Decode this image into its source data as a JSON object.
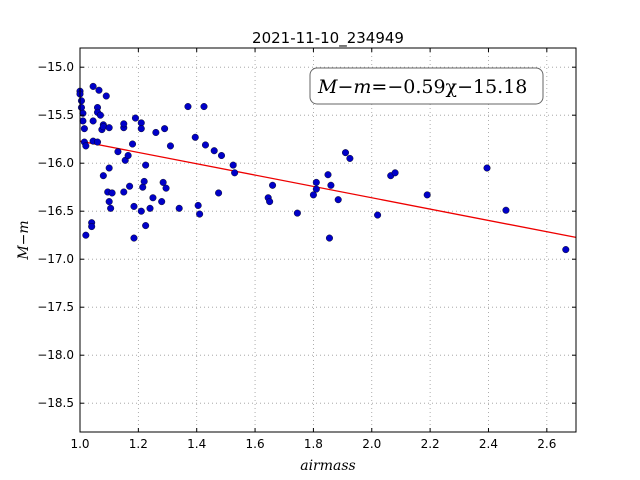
{
  "chart_data": {
    "type": "scatter",
    "title": "2021-11-10_234949",
    "xlabel": "airmass",
    "ylabel": "M−m",
    "xlim": [
      1.0,
      2.7
    ],
    "ylim": [
      -18.8,
      -14.8
    ],
    "x_ticks": [
      "1.0",
      "1.2",
      "1.4",
      "1.6",
      "1.8",
      "2.0",
      "2.2",
      "2.4",
      "2.6"
    ],
    "y_ticks": [
      "−15.0",
      "−15.5",
      "−16.0",
      "−16.5",
      "−17.0",
      "−17.5",
      "−18.0",
      "−18.5"
    ],
    "grid": true,
    "annotation": {
      "text_lhs": "M−m",
      "text_rhs": "=−0.59χ−15.18",
      "position": "top-right"
    },
    "fit": {
      "slope": -0.59,
      "intercept": -15.18,
      "color": "#ee0000"
    },
    "marker_color": "#0000c8",
    "points": [
      [
        1.0,
        -15.25
      ],
      [
        1.0,
        -15.28
      ],
      [
        1.005,
        -15.35
      ],
      [
        1.005,
        -15.42
      ],
      [
        1.01,
        -15.48
      ],
      [
        1.01,
        -15.56
      ],
      [
        1.015,
        -15.64
      ],
      [
        1.015,
        -15.78
      ],
      [
        1.02,
        -15.82
      ],
      [
        1.02,
        -16.75
      ],
      [
        1.04,
        -16.62
      ],
      [
        1.04,
        -16.66
      ],
      [
        1.045,
        -15.2
      ],
      [
        1.045,
        -15.56
      ],
      [
        1.045,
        -15.77
      ],
      [
        1.06,
        -15.42
      ],
      [
        1.06,
        -15.47
      ],
      [
        1.06,
        -15.78
      ],
      [
        1.065,
        -15.24
      ],
      [
        1.07,
        -15.5
      ],
      [
        1.075,
        -15.65
      ],
      [
        1.08,
        -15.6
      ],
      [
        1.08,
        -15.62
      ],
      [
        1.08,
        -16.13
      ],
      [
        1.09,
        -15.3
      ],
      [
        1.095,
        -16.3
      ],
      [
        1.1,
        -16.05
      ],
      [
        1.1,
        -15.63
      ],
      [
        1.1,
        -16.4
      ],
      [
        1.105,
        -16.47
      ],
      [
        1.11,
        -16.31
      ],
      [
        1.13,
        -15.88
      ],
      [
        1.15,
        -15.63
      ],
      [
        1.15,
        -15.59
      ],
      [
        1.15,
        -16.3
      ],
      [
        1.155,
        -15.97
      ],
      [
        1.165,
        -15.92
      ],
      [
        1.17,
        -16.24
      ],
      [
        1.18,
        -15.8
      ],
      [
        1.185,
        -16.45
      ],
      [
        1.185,
        -16.78
      ],
      [
        1.19,
        -15.53
      ],
      [
        1.21,
        -15.58
      ],
      [
        1.21,
        -15.64
      ],
      [
        1.21,
        -16.5
      ],
      [
        1.215,
        -16.25
      ],
      [
        1.22,
        -16.19
      ],
      [
        1.225,
        -16.65
      ],
      [
        1.225,
        -16.02
      ],
      [
        1.24,
        -16.47
      ],
      [
        1.25,
        -16.36
      ],
      [
        1.26,
        -15.68
      ],
      [
        1.28,
        -16.4
      ],
      [
        1.285,
        -16.2
      ],
      [
        1.29,
        -15.64
      ],
      [
        1.295,
        -16.26
      ],
      [
        1.31,
        -15.82
      ],
      [
        1.34,
        -16.47
      ],
      [
        1.37,
        -15.41
      ],
      [
        1.395,
        -15.73
      ],
      [
        1.405,
        -16.44
      ],
      [
        1.41,
        -16.53
      ],
      [
        1.425,
        -15.41
      ],
      [
        1.43,
        -15.81
      ],
      [
        1.46,
        -15.87
      ],
      [
        1.475,
        -16.31
      ],
      [
        1.485,
        -15.92
      ],
      [
        1.525,
        -16.02
      ],
      [
        1.53,
        -16.1
      ],
      [
        1.645,
        -16.36
      ],
      [
        1.65,
        -16.4
      ],
      [
        1.66,
        -16.23
      ],
      [
        1.745,
        -16.52
      ],
      [
        1.8,
        -16.33
      ],
      [
        1.81,
        -16.2
      ],
      [
        1.81,
        -16.27
      ],
      [
        1.85,
        -16.12
      ],
      [
        1.855,
        -16.78
      ],
      [
        1.86,
        -16.23
      ],
      [
        1.885,
        -16.38
      ],
      [
        1.91,
        -15.89
      ],
      [
        1.925,
        -15.95
      ],
      [
        2.02,
        -16.54
      ],
      [
        2.065,
        -16.13
      ],
      [
        2.08,
        -16.1
      ],
      [
        2.19,
        -16.33
      ],
      [
        2.395,
        -16.05
      ],
      [
        2.46,
        -16.49
      ],
      [
        2.665,
        -16.9
      ]
    ]
  }
}
